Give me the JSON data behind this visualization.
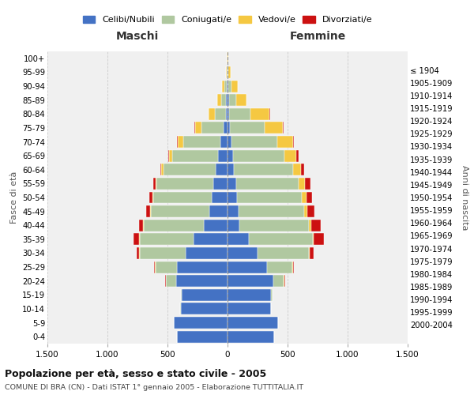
{
  "age_groups": [
    "0-4",
    "5-9",
    "10-14",
    "15-19",
    "20-24",
    "25-29",
    "30-34",
    "35-39",
    "40-44",
    "45-49",
    "50-54",
    "55-59",
    "60-64",
    "65-69",
    "70-74",
    "75-79",
    "80-84",
    "85-89",
    "90-94",
    "95-99",
    "100+"
  ],
  "birth_years": [
    "2000-2004",
    "1995-1999",
    "1990-1994",
    "1985-1989",
    "1980-1984",
    "1975-1979",
    "1970-1974",
    "1965-1969",
    "1960-1964",
    "1955-1959",
    "1950-1954",
    "1945-1949",
    "1940-1944",
    "1935-1939",
    "1930-1934",
    "1925-1929",
    "1920-1924",
    "1915-1919",
    "1910-1914",
    "1905-1909",
    "≤ 1904"
  ],
  "colors": {
    "celibe": "#4472C4",
    "coniugato": "#B0C8A0",
    "vedovo": "#F5C842",
    "divorziato": "#CC1111"
  },
  "maschi": {
    "celibe": [
      420,
      450,
      390,
      380,
      430,
      420,
      350,
      280,
      200,
      150,
      130,
      120,
      100,
      80,
      60,
      30,
      15,
      10,
      5,
      2,
      0
    ],
    "coniugato": [
      0,
      0,
      5,
      10,
      80,
      180,
      380,
      450,
      500,
      490,
      490,
      470,
      430,
      380,
      310,
      190,
      90,
      45,
      20,
      5,
      2
    ],
    "vedovo": [
      0,
      0,
      0,
      0,
      5,
      5,
      5,
      5,
      5,
      5,
      5,
      10,
      20,
      30,
      45,
      50,
      50,
      30,
      20,
      8,
      2
    ],
    "divorziato": [
      0,
      0,
      0,
      0,
      5,
      5,
      20,
      50,
      30,
      30,
      25,
      20,
      10,
      5,
      5,
      5,
      0,
      0,
      0,
      0,
      0
    ]
  },
  "femmine": {
    "nubile": [
      390,
      420,
      360,
      360,
      380,
      330,
      250,
      180,
      100,
      90,
      80,
      70,
      55,
      45,
      35,
      20,
      10,
      10,
      5,
      2,
      0
    ],
    "coniugata": [
      0,
      0,
      5,
      15,
      90,
      210,
      430,
      530,
      580,
      550,
      540,
      520,
      490,
      430,
      380,
      290,
      180,
      60,
      25,
      5,
      2
    ],
    "vedova": [
      0,
      0,
      0,
      0,
      5,
      5,
      5,
      10,
      15,
      25,
      35,
      55,
      70,
      100,
      130,
      150,
      160,
      90,
      55,
      20,
      5
    ],
    "divorziata": [
      0,
      0,
      0,
      0,
      5,
      5,
      30,
      80,
      80,
      60,
      50,
      45,
      25,
      20,
      10,
      5,
      5,
      0,
      0,
      0,
      0
    ]
  },
  "title": "Popolazione per età, sesso e stato civile - 2005",
  "subtitle": "COMUNE DI BRA (CN) - Dati ISTAT 1° gennaio 2005 - Elaborazione TUTTITALIA.IT",
  "xlabel_left": "Maschi",
  "xlabel_right": "Femmine",
  "ylabel_left": "Fasce di età",
  "ylabel_right": "Anni di nascita",
  "xlim": 1500,
  "background_color": "#ffffff",
  "plot_bg_color": "#f0f0f0",
  "grid_color": "#cccccc"
}
